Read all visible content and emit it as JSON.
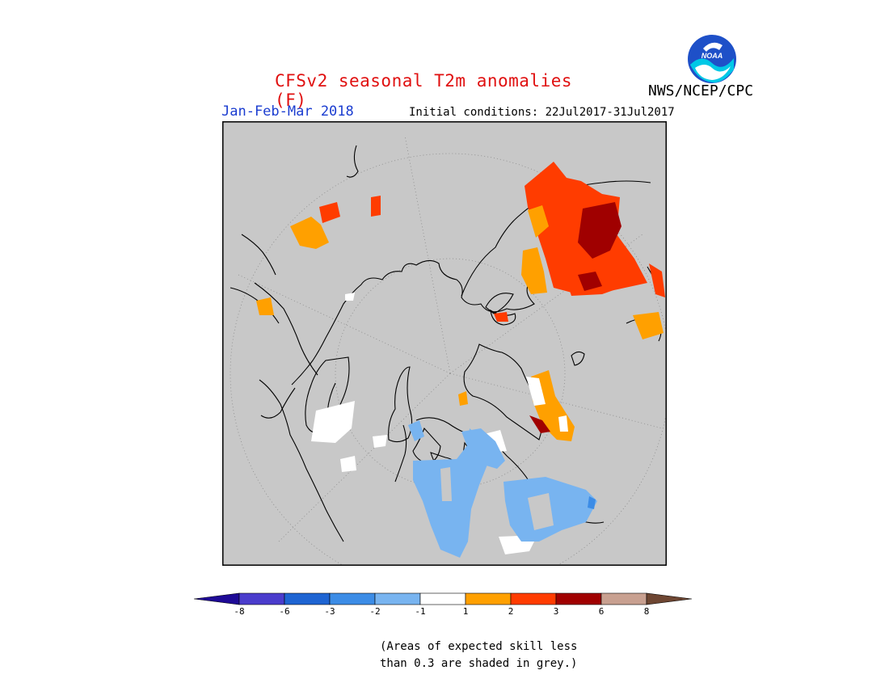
{
  "header": {
    "title": "CFSv2 seasonal T2m anomalies (F)",
    "org": "NWS/NCEP/CPC",
    "season": "Jan-Feb-Mar 2018",
    "initial_conditions": "Initial conditions: 22Jul2017-31Jul2017",
    "logo_text": "NOAA"
  },
  "map": {
    "projection": "north-polar-stereographic",
    "background_color": "#c8c8c8"
  },
  "colorbar": {
    "tick_labels": [
      "-8",
      "-6",
      "-3",
      "-2",
      "-1",
      "1",
      "2",
      "3",
      "6",
      "8"
    ],
    "colors": [
      "#1e0a96",
      "#4a3ccc",
      "#1e64d2",
      "#3c8ce6",
      "#78b4f0",
      "#ffffff",
      "#ffa000",
      "#ff3c00",
      "#a00000",
      "#c8a090",
      "#6e4632"
    ]
  },
  "note": "(Areas of expected skill less\nthan 0.3 are shaded in grey.)"
}
